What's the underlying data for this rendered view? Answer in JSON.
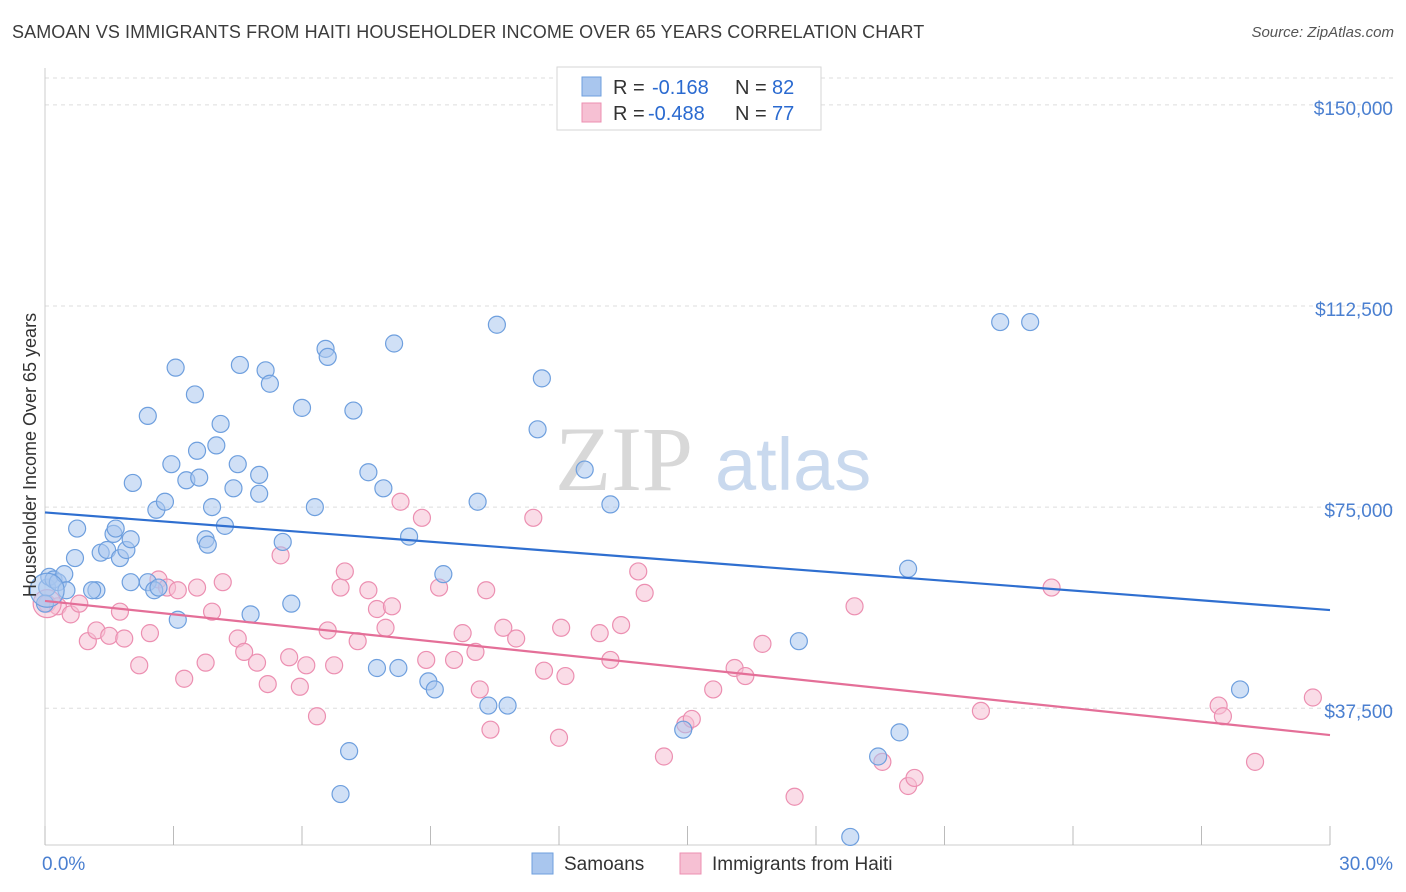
{
  "title": "SAMOAN VS IMMIGRANTS FROM HAITI HOUSEHOLDER INCOME OVER 65 YEARS CORRELATION CHART",
  "source": "Source: ZipAtlas.com",
  "watermark": {
    "zip": "ZIP",
    "atlas": "atlas"
  },
  "colors": {
    "blue_fill": "#a9c6ee",
    "blue_stroke": "#6e9fde",
    "blue_line": "#2f6fd0",
    "pink_fill": "#f6c0d3",
    "pink_stroke": "#ec8fb1",
    "pink_line": "#e46f98",
    "grid": "#dddddd",
    "axis_label": "#4a7fd0"
  },
  "legend": {
    "rows": [
      {
        "r_label": "R =",
        "r_value": "-0.168",
        "n_label": "N =",
        "n_value": "82",
        "series": "samoans"
      },
      {
        "r_label": "R =",
        "r_value": "-0.488",
        "n_label": "N =",
        "n_value": "77",
        "series": "haiti"
      }
    ]
  },
  "chart_data": {
    "type": "scatter",
    "title": "SAMOAN VS IMMIGRANTS FROM HAITI HOUSEHOLDER INCOME OVER 65 YEARS CORRELATION CHART",
    "xlabel": "",
    "ylabel": "Householder Income Over 65 years",
    "xlim": [
      0,
      30
    ],
    "ylim": [
      12000,
      155000
    ],
    "x_tick_labels": [
      {
        "value": 0,
        "label": "0.0%"
      },
      {
        "value": 30,
        "label": "30.0%"
      }
    ],
    "y_ticks": [
      {
        "value": 37500,
        "label": "$37,500"
      },
      {
        "value": 75000,
        "label": "$75,000"
      },
      {
        "value": 112500,
        "label": "$112,500"
      },
      {
        "value": 150000,
        "label": "$150,000"
      }
    ],
    "x_minor_ticks": [
      0,
      3,
      6,
      9,
      12,
      15,
      18,
      21,
      24,
      27,
      30
    ],
    "grid": true,
    "legend_position": "top-center",
    "series": [
      {
        "name": "Samoans",
        "key": "samoans",
        "r": -0.168,
        "n": 82,
        "trend": {
          "x0": 0,
          "y0": 74000,
          "x1": 30,
          "y1": 55800
        },
        "points": [
          [
            0.05,
            60000
          ],
          [
            0.1,
            62000
          ],
          [
            0.2,
            61500
          ],
          [
            0.3,
            61000
          ],
          [
            0.45,
            62500
          ],
          [
            0.5,
            59500
          ],
          [
            0.7,
            65500
          ],
          [
            0.75,
            71000
          ],
          [
            1.2,
            59500
          ],
          [
            1.3,
            66500
          ],
          [
            1.45,
            67000
          ],
          [
            1.6,
            70000
          ],
          [
            1.65,
            71000
          ],
          [
            1.75,
            65500
          ],
          [
            1.9,
            67000
          ],
          [
            2.0,
            61000
          ],
          [
            2.0,
            69000
          ],
          [
            2.05,
            79500
          ],
          [
            2.4,
            61000
          ],
          [
            2.4,
            92000
          ],
          [
            2.55,
            59500
          ],
          [
            2.6,
            74500
          ],
          [
            2.65,
            60000
          ],
          [
            2.8,
            76000
          ],
          [
            2.95,
            83000
          ],
          [
            3.05,
            101000
          ],
          [
            3.1,
            54000
          ],
          [
            3.3,
            80000
          ],
          [
            3.5,
            96000
          ],
          [
            3.55,
            85500
          ],
          [
            3.6,
            80500
          ],
          [
            3.75,
            69000
          ],
          [
            3.8,
            68000
          ],
          [
            3.9,
            75000
          ],
          [
            4.0,
            86500
          ],
          [
            4.1,
            90500
          ],
          [
            4.2,
            71500
          ],
          [
            4.4,
            78500
          ],
          [
            4.5,
            83000
          ],
          [
            4.55,
            101500
          ],
          [
            4.8,
            55000
          ],
          [
            5.0,
            81000
          ],
          [
            5.0,
            77500
          ],
          [
            5.15,
            100500
          ],
          [
            5.25,
            98000
          ],
          [
            5.55,
            68500
          ],
          [
            5.75,
            57000
          ],
          [
            6.0,
            93500
          ],
          [
            6.3,
            75000
          ],
          [
            6.55,
            104500
          ],
          [
            6.6,
            103000
          ],
          [
            6.9,
            21500
          ],
          [
            7.1,
            29500
          ],
          [
            7.2,
            93000
          ],
          [
            7.55,
            81500
          ],
          [
            7.75,
            45000
          ],
          [
            7.9,
            78500
          ],
          [
            8.15,
            105500
          ],
          [
            8.25,
            45000
          ],
          [
            8.5,
            69500
          ],
          [
            8.95,
            42500
          ],
          [
            9.1,
            41000
          ],
          [
            9.3,
            62500
          ],
          [
            10.1,
            76000
          ],
          [
            10.35,
            38000
          ],
          [
            10.55,
            109000
          ],
          [
            10.8,
            38000
          ],
          [
            11.5,
            89500
          ],
          [
            11.6,
            99000
          ],
          [
            12.6,
            82000
          ],
          [
            13.2,
            75500
          ],
          [
            14.9,
            33500
          ],
          [
            17.6,
            50000
          ],
          [
            18.8,
            13500
          ],
          [
            19.45,
            28500
          ],
          [
            19.95,
            33000
          ],
          [
            20.15,
            63500
          ],
          [
            22.3,
            109500
          ],
          [
            23.0,
            109500
          ],
          [
            27.9,
            41000
          ],
          [
            0.0,
            57000
          ],
          [
            1.1,
            59500
          ]
        ]
      },
      {
        "name": "Immigrants from Haiti",
        "key": "haiti",
        "r": -0.488,
        "n": 77,
        "trend": {
          "x0": 0,
          "y0": 57500,
          "x1": 30,
          "y1": 32500
        },
        "points": [
          [
            0.05,
            57000
          ],
          [
            0.3,
            56500
          ],
          [
            0.6,
            55000
          ],
          [
            0.8,
            57000
          ],
          [
            1.0,
            50000
          ],
          [
            1.2,
            52000
          ],
          [
            1.5,
            51000
          ],
          [
            1.75,
            55500
          ],
          [
            1.85,
            50500
          ],
          [
            2.2,
            45500
          ],
          [
            2.45,
            51500
          ],
          [
            2.65,
            61500
          ],
          [
            2.85,
            60000
          ],
          [
            3.1,
            59500
          ],
          [
            3.25,
            43000
          ],
          [
            3.55,
            60000
          ],
          [
            3.75,
            46000
          ],
          [
            3.9,
            55500
          ],
          [
            4.15,
            61000
          ],
          [
            4.5,
            50500
          ],
          [
            4.65,
            48000
          ],
          [
            4.95,
            46000
          ],
          [
            5.2,
            42000
          ],
          [
            5.5,
            66000
          ],
          [
            5.7,
            47000
          ],
          [
            5.95,
            41500
          ],
          [
            6.1,
            45500
          ],
          [
            6.35,
            36000
          ],
          [
            6.6,
            52000
          ],
          [
            6.75,
            45500
          ],
          [
            6.9,
            60000
          ],
          [
            7.0,
            63000
          ],
          [
            7.3,
            50000
          ],
          [
            7.55,
            59500
          ],
          [
            7.75,
            56000
          ],
          [
            7.95,
            52500
          ],
          [
            8.1,
            56500
          ],
          [
            8.3,
            76000
          ],
          [
            8.8,
            73000
          ],
          [
            8.9,
            46500
          ],
          [
            9.2,
            60000
          ],
          [
            9.55,
            46500
          ],
          [
            9.75,
            51500
          ],
          [
            10.05,
            48000
          ],
          [
            10.15,
            41000
          ],
          [
            10.3,
            59500
          ],
          [
            10.4,
            33500
          ],
          [
            10.7,
            52500
          ],
          [
            11.0,
            50500
          ],
          [
            11.4,
            73000
          ],
          [
            11.65,
            44500
          ],
          [
            12.0,
            32000
          ],
          [
            12.05,
            52500
          ],
          [
            12.15,
            43500
          ],
          [
            12.95,
            51500
          ],
          [
            13.2,
            46500
          ],
          [
            13.45,
            53000
          ],
          [
            13.85,
            63000
          ],
          [
            14.0,
            59000
          ],
          [
            14.45,
            28500
          ],
          [
            14.95,
            34500
          ],
          [
            15.1,
            35500
          ],
          [
            15.6,
            41000
          ],
          [
            16.1,
            45000
          ],
          [
            16.35,
            43500
          ],
          [
            16.75,
            49500
          ],
          [
            17.5,
            21000
          ],
          [
            18.9,
            56500
          ],
          [
            19.55,
            27500
          ],
          [
            20.15,
            23000
          ],
          [
            20.3,
            24500
          ],
          [
            21.85,
            37000
          ],
          [
            23.5,
            60000
          ],
          [
            27.4,
            38000
          ],
          [
            27.5,
            36000
          ],
          [
            28.25,
            27500
          ],
          [
            29.6,
            39500
          ]
        ]
      }
    ]
  },
  "bottom_legend": [
    {
      "label": "Samoans",
      "series": "samoans"
    },
    {
      "label": "Immigrants from Haiti",
      "series": "haiti"
    }
  ]
}
